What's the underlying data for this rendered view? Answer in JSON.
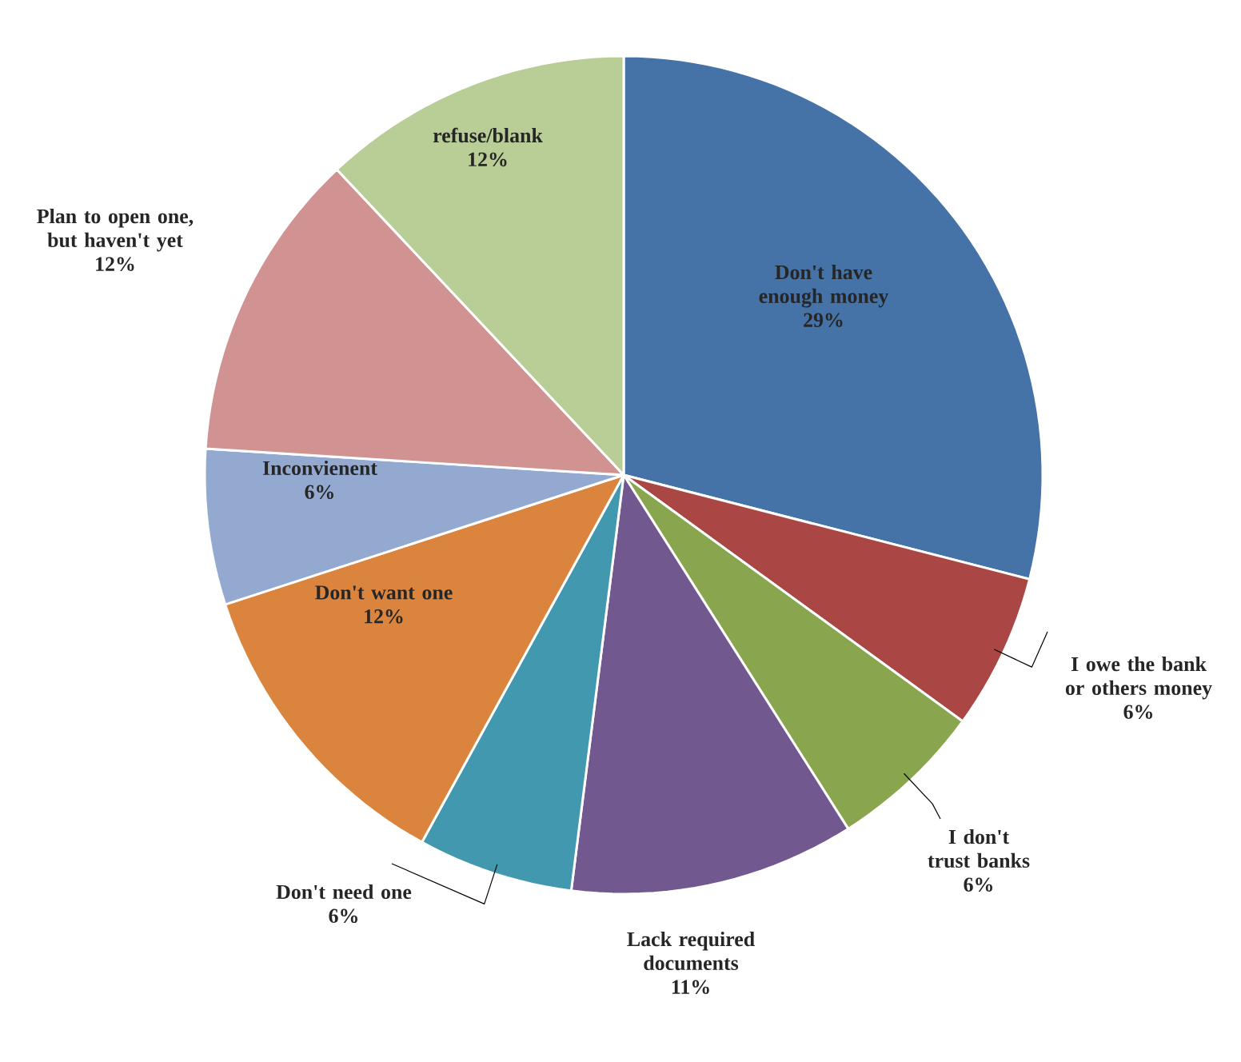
{
  "chart_data": {
    "type": "pie",
    "categories": [
      "Don't have enough money",
      "I owe the bank or others money",
      "I don't trust banks",
      "Lack required documents",
      "Don't need one",
      "Don't want one",
      "Inconvienent",
      "Plan to open one, but haven't yet",
      "refuse/blank"
    ],
    "values": [
      29,
      6,
      6,
      11,
      6,
      12,
      6,
      12,
      12
    ],
    "value_labels": [
      "29%",
      "6%",
      "6%",
      "11%",
      "6%",
      "12%",
      "6%",
      "12%",
      "12%"
    ],
    "colors": [
      "#4572a7",
      "#aa4643",
      "#89a54e",
      "#71588f",
      "#4198af",
      "#db843d",
      "#93a9cf",
      "#d19392",
      "#b9cd96"
    ]
  }
}
